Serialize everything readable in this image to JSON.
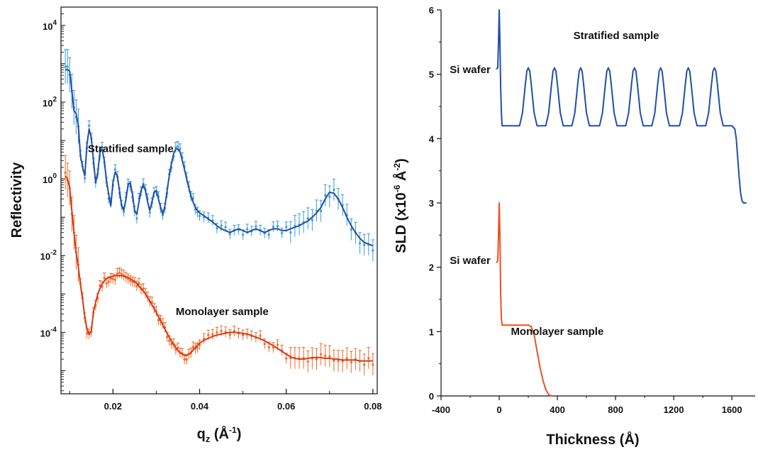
{
  "chart_data": [
    {
      "type": "line",
      "yscale": "log",
      "xlabel_base": "q",
      "xlabel_sub": "z",
      "xlabel_unit_open": " (Å",
      "xlabel_unit_exp": "-1",
      "xlabel_unit_close": ")",
      "ylabel": "Reflectivity",
      "xlim": [
        0.008,
        0.081
      ],
      "ylim": [
        2.5e-06,
        30000
      ],
      "x_ticks": [
        {
          "value": 0.02,
          "label": "0.02"
        },
        {
          "value": 0.04,
          "label": "0.04"
        },
        {
          "value": 0.06,
          "label": "0.06"
        },
        {
          "value": 0.08,
          "label": "0.08"
        }
      ],
      "y_ticks": [
        {
          "value": 10000,
          "base": "10",
          "exp": "4"
        },
        {
          "value": 100,
          "base": "10",
          "exp": "2"
        },
        {
          "value": 1,
          "base": "10",
          "exp": "0"
        },
        {
          "value": 0.01,
          "base": "10",
          "exp": "-2"
        },
        {
          "value": 0.0001,
          "base": "10",
          "exp": "-4"
        }
      ],
      "annotations": [
        {
          "text": "Stratified sample",
          "x": 0.0142,
          "y": 5
        },
        {
          "text": "Monolayer sample",
          "x": 0.0345,
          "y": 0.00028
        }
      ],
      "series": [
        {
          "key": "stratified",
          "data_color": "#3a9ad9",
          "fit_color": "#1f4fa8",
          "x": [
            0.009,
            0.0095,
            0.01,
            0.0105,
            0.011,
            0.0115,
            0.012,
            0.0125,
            0.013,
            0.0135,
            0.014,
            0.0145,
            0.015,
            0.0155,
            0.016,
            0.0165,
            0.017,
            0.0175,
            0.018,
            0.0185,
            0.019,
            0.0195,
            0.02,
            0.0205,
            0.021,
            0.0215,
            0.022,
            0.0225,
            0.023,
            0.0235,
            0.024,
            0.0245,
            0.025,
            0.0255,
            0.026,
            0.0265,
            0.027,
            0.0275,
            0.028,
            0.0285,
            0.029,
            0.0295,
            0.03,
            0.0305,
            0.031,
            0.0315,
            0.032,
            0.0325,
            0.033,
            0.0335,
            0.034,
            0.0345,
            0.035,
            0.0355,
            0.036,
            0.0365,
            0.037,
            0.0375,
            0.038,
            0.0385,
            0.039,
            0.0395,
            0.04,
            0.041,
            0.042,
            0.043,
            0.044,
            0.045,
            0.046,
            0.047,
            0.048,
            0.049,
            0.05,
            0.051,
            0.052,
            0.053,
            0.054,
            0.055,
            0.056,
            0.057,
            0.058,
            0.059,
            0.06,
            0.061,
            0.062,
            0.063,
            0.064,
            0.065,
            0.066,
            0.067,
            0.068,
            0.069,
            0.07,
            0.071,
            0.072,
            0.073,
            0.074,
            0.075,
            0.076,
            0.077,
            0.078,
            0.079,
            0.08
          ],
          "y": [
            700,
            700,
            650,
            200,
            60,
            50,
            25,
            4,
            2,
            1.2,
            8,
            20,
            12,
            3,
            0.8,
            1.5,
            5,
            6,
            3,
            0.9,
            0.4,
            0.2,
            0.8,
            1.5,
            1.2,
            0.5,
            0.2,
            0.15,
            0.3,
            0.7,
            0.8,
            0.4,
            0.15,
            0.12,
            0.25,
            0.5,
            0.7,
            0.5,
            0.25,
            0.15,
            0.25,
            0.45,
            0.5,
            0.3,
            0.18,
            0.12,
            0.2,
            0.5,
            1.2,
            2.5,
            4.5,
            6,
            6,
            5,
            3,
            1.8,
            1,
            0.6,
            0.35,
            0.25,
            0.18,
            0.15,
            0.13,
            0.11,
            0.09,
            0.075,
            0.06,
            0.05,
            0.045,
            0.04,
            0.045,
            0.05,
            0.045,
            0.04,
            0.045,
            0.05,
            0.045,
            0.04,
            0.045,
            0.05,
            0.05,
            0.045,
            0.045,
            0.05,
            0.055,
            0.06,
            0.07,
            0.08,
            0.1,
            0.13,
            0.18,
            0.3,
            0.45,
            0.42,
            0.3,
            0.18,
            0.1,
            0.06,
            0.04,
            0.028,
            0.022,
            0.02,
            0.018
          ]
        },
        {
          "key": "monolayer",
          "data_color": "#f06a2a",
          "fit_color": "#d63a14",
          "x": [
            0.009,
            0.0095,
            0.01,
            0.0105,
            0.011,
            0.0115,
            0.012,
            0.0125,
            0.013,
            0.0135,
            0.014,
            0.0145,
            0.015,
            0.0155,
            0.016,
            0.0165,
            0.017,
            0.0175,
            0.018,
            0.0185,
            0.019,
            0.0195,
            0.02,
            0.0205,
            0.021,
            0.0215,
            0.022,
            0.0225,
            0.023,
            0.0235,
            0.024,
            0.0245,
            0.025,
            0.0255,
            0.026,
            0.0265,
            0.027,
            0.0275,
            0.028,
            0.0285,
            0.029,
            0.0295,
            0.03,
            0.0305,
            0.031,
            0.0315,
            0.032,
            0.0325,
            0.033,
            0.0335,
            0.034,
            0.0345,
            0.035,
            0.0355,
            0.036,
            0.0365,
            0.037,
            0.0375,
            0.038,
            0.0385,
            0.039,
            0.0395,
            0.04,
            0.041,
            0.042,
            0.043,
            0.044,
            0.045,
            0.046,
            0.047,
            0.048,
            0.049,
            0.05,
            0.051,
            0.052,
            0.053,
            0.054,
            0.055,
            0.056,
            0.057,
            0.058,
            0.059,
            0.06,
            0.061,
            0.062,
            0.063,
            0.064,
            0.065,
            0.066,
            0.067,
            0.068,
            0.069,
            0.07,
            0.071,
            0.072,
            0.073,
            0.074,
            0.075,
            0.076,
            0.077,
            0.078,
            0.079,
            0.08
          ],
          "y": [
            1.2,
            1,
            0.6,
            0.15,
            0.04,
            0.012,
            0.005,
            0.0018,
            0.0007,
            0.00025,
            0.00012,
            9e-05,
            0.00011,
            0.00035,
            0.0006,
            0.001,
            0.0014,
            0.0018,
            0.0022,
            0.0025,
            0.0027,
            0.0028,
            0.0029,
            0.003,
            0.003,
            0.003,
            0.003,
            0.0029,
            0.0028,
            0.0027,
            0.0025,
            0.0023,
            0.0021,
            0.0019,
            0.0016,
            0.0014,
            0.0012,
            0.001,
            0.0008,
            0.00065,
            0.00052,
            0.00042,
            0.00033,
            0.00026,
            0.0002,
            0.000155,
            0.00012,
            9.5e-05,
            7.5e-05,
            6e-05,
            4.8e-05,
            4e-05,
            3.4e-05,
            3e-05,
            2.7e-05,
            2.5e-05,
            2.5e-05,
            2.7e-05,
            3e-05,
            3.5e-05,
            4e-05,
            4.6e-05,
            5.2e-05,
            6.2e-05,
            7e-05,
            7.8e-05,
            8.5e-05,
            9e-05,
            9.5e-05,
            0.0001,
            0.0001,
            9.8e-05,
            9.4e-05,
            9e-05,
            8.3e-05,
            7.5e-05,
            6.8e-05,
            6e-05,
            5.2e-05,
            4.5e-05,
            3.8e-05,
            3.2e-05,
            2.7e-05,
            2.3e-05,
            2.1e-05,
            2e-05,
            2e-05,
            2.1e-05,
            2.2e-05,
            2.2e-05,
            2.2e-05,
            2.1e-05,
            2.1e-05,
            2e-05,
            2e-05,
            1.9e-05,
            1.9e-05,
            1.9e-05,
            1.9e-05,
            1.8e-05,
            1.8e-05,
            1.8e-05,
            1.8e-05
          ]
        }
      ]
    },
    {
      "type": "line",
      "xlabel": "Thickness (Å)",
      "ylabel_main": "SLD (x10",
      "ylabel_exp1": "-6",
      "ylabel_mid": " Å",
      "ylabel_exp2": "-2",
      "ylabel_close": ")",
      "xlim": [
        -400,
        1760
      ],
      "ylim": [
        0,
        6
      ],
      "x_ticks": [
        {
          "value": -400,
          "label": "-400"
        },
        {
          "value": 0,
          "label": "0"
        },
        {
          "value": 400,
          "label": "400"
        },
        {
          "value": 800,
          "label": "800"
        },
        {
          "value": 1200,
          "label": "1200"
        },
        {
          "value": 1600,
          "label": "1600"
        }
      ],
      "y_ticks": [
        {
          "value": 0,
          "label": "0"
        },
        {
          "value": 1,
          "label": "1"
        },
        {
          "value": 2,
          "label": "2"
        },
        {
          "value": 3,
          "label": "3"
        },
        {
          "value": 4,
          "label": "4"
        },
        {
          "value": 5,
          "label": "5"
        },
        {
          "value": 6,
          "label": "6"
        }
      ],
      "annotations": [
        {
          "text": "Stratified sample",
          "x": 510,
          "y": 5.55
        },
        {
          "text": "Si wafer",
          "x": -340,
          "y": 5.02
        },
        {
          "text": "Si wafer",
          "x": -340,
          "y": 2.05
        },
        {
          "text": "Monolayer sample",
          "x": 80,
          "y": 0.95
        }
      ],
      "series": [
        {
          "key": "stratified-profile",
          "color": "#1f4fa8",
          "x": [
            -20,
            -10,
            -5,
            0,
            5,
            10,
            15,
            20,
            30,
            40,
            100,
            140,
            160,
            180,
            190,
            200,
            210,
            220,
            240,
            260,
            320,
            340,
            360,
            370,
            380,
            390,
            400,
            420,
            440,
            500,
            520,
            540,
            550,
            560,
            570,
            580,
            600,
            620,
            690,
            710,
            730,
            740,
            750,
            760,
            770,
            790,
            810,
            870,
            890,
            910,
            920,
            930,
            940,
            950,
            970,
            990,
            1050,
            1070,
            1090,
            1100,
            1110,
            1120,
            1130,
            1150,
            1170,
            1240,
            1260,
            1280,
            1290,
            1300,
            1310,
            1320,
            1340,
            1360,
            1420,
            1440,
            1460,
            1470,
            1480,
            1490,
            1500,
            1520,
            1540,
            1600,
            1620,
            1630,
            1640,
            1650,
            1660,
            1670,
            1680,
            1700
          ],
          "y": [
            5.08,
            5.1,
            5.5,
            6.0,
            5.5,
            4.8,
            4.4,
            4.2,
            4.2,
            4.2,
            4.2,
            4.2,
            4.4,
            4.85,
            5.05,
            5.1,
            5.05,
            4.85,
            4.4,
            4.2,
            4.2,
            4.4,
            4.85,
            5.05,
            5.1,
            5.05,
            4.85,
            4.4,
            4.2,
            4.2,
            4.4,
            4.85,
            5.05,
            5.1,
            5.05,
            4.85,
            4.4,
            4.2,
            4.2,
            4.4,
            4.85,
            5.05,
            5.1,
            5.05,
            4.85,
            4.4,
            4.2,
            4.2,
            4.4,
            4.85,
            5.05,
            5.1,
            5.05,
            4.85,
            4.4,
            4.2,
            4.2,
            4.4,
            4.85,
            5.05,
            5.1,
            5.05,
            4.85,
            4.4,
            4.2,
            4.2,
            4.4,
            4.85,
            5.05,
            5.1,
            5.05,
            4.85,
            4.4,
            4.2,
            4.2,
            4.4,
            4.85,
            5.05,
            5.1,
            5.05,
            4.85,
            4.4,
            4.2,
            4.2,
            4.15,
            4.0,
            3.7,
            3.4,
            3.15,
            3.03,
            3.0,
            3.0
          ]
        },
        {
          "key": "monolayer-profile",
          "color": "#f05020",
          "x": [
            -20,
            -10,
            -5,
            0,
            5,
            10,
            15,
            20,
            40,
            100,
            180,
            200,
            220,
            240,
            260,
            280,
            300,
            320,
            340,
            360
          ],
          "y": [
            2.07,
            2.1,
            2.5,
            3.0,
            2.5,
            1.6,
            1.2,
            1.1,
            1.1,
            1.1,
            1.1,
            1.1,
            1.08,
            0.95,
            0.7,
            0.45,
            0.25,
            0.1,
            0.02,
            0
          ]
        }
      ]
    }
  ]
}
